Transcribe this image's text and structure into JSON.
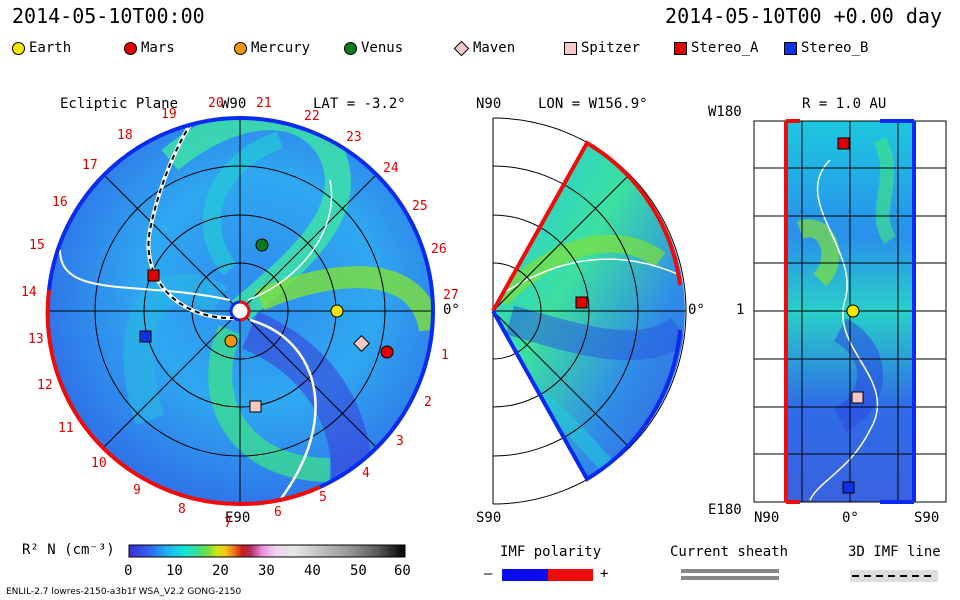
{
  "header": {
    "date_left": "2014-05-10T00:00",
    "date_right": "2014-05-10T00 +0.00 day"
  },
  "legend": [
    {
      "label": "Earth",
      "color": "#f5e600",
      "shape": "circle"
    },
    {
      "label": "Mars",
      "color": "#e00000",
      "shape": "circle"
    },
    {
      "label": "Mercury",
      "color": "#f0960a",
      "shape": "circle"
    },
    {
      "label": "Venus",
      "color": "#0a7a1e",
      "shape": "circle"
    },
    {
      "label": "Maven",
      "color": "#f5c8c8",
      "shape": "diamond"
    },
    {
      "label": "Spitzer",
      "color": "#f5c8c8",
      "shape": "square"
    },
    {
      "label": "Stereo_A",
      "color": "#e00000",
      "shape": "square"
    },
    {
      "label": "Stereo_B",
      "color": "#0a32e6",
      "shape": "square"
    }
  ],
  "ecliptic": {
    "title": "Ecliptic Plane",
    "lat_label": "LAT = -3.2°",
    "top_label": "W90",
    "bottom_label": "E90",
    "right_label": "0°",
    "rim_numbers": [
      "27",
      "1",
      "2",
      "3",
      "4",
      "5",
      "6",
      "7",
      "8",
      "9",
      "10",
      "11",
      "12",
      "13",
      "14",
      "15",
      "16",
      "17",
      "18",
      "19",
      "20",
      "21",
      "22",
      "23",
      "24",
      "25",
      "26"
    ]
  },
  "meridional": {
    "top_left": "N90",
    "title": "LON = W156.9°",
    "bottom_left": "S90",
    "right_label": "0°"
  },
  "radial": {
    "title": "R = 1.0 AU",
    "top_left": "W180",
    "mid_left": "1",
    "bottom_left": "E180",
    "bottom_ticks": [
      "N90",
      "0°",
      "S90"
    ]
  },
  "colorbar": {
    "label": "R² N (cm⁻³)",
    "ticks": [
      "0",
      "10",
      "20",
      "30",
      "40",
      "50",
      "60"
    ],
    "stops": [
      "#3a2cd8",
      "#2f6cf0",
      "#1fb4f0",
      "#14e2dc",
      "#3ce08c",
      "#7ee03a",
      "#d2e614",
      "#f0c814",
      "#f07814",
      "#c81e1e",
      "#b4285a",
      "#e68cdc",
      "#f0d2f0",
      "#dcdcdc",
      "#b4b4b4",
      "#8c8c8c",
      "#5a5a5a",
      "#282828",
      "#000000"
    ]
  },
  "imf": {
    "title": "IMF polarity",
    "minus": "–",
    "plus": "+",
    "neg_color": "#0a0af0",
    "pos_color": "#f00a0a"
  },
  "current_sheath": {
    "title": "Current sheath"
  },
  "imf_line": {
    "title": "3D IMF line"
  },
  "footer": {
    "model": "ENLIL-2.7 lowres-2150-a3b1f WSA_V2.2 GONG-2150"
  }
}
